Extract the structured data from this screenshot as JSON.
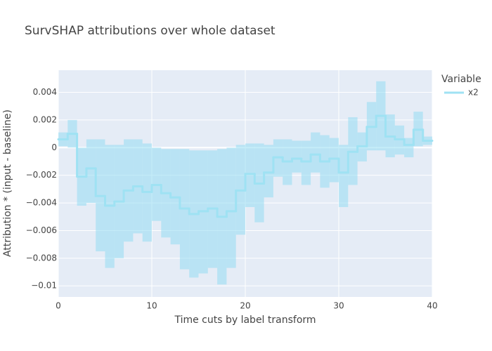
{
  "chart_data": {
    "type": "step",
    "title": "SurvSHAP attributions over whole dataset",
    "x_label": "Time cuts by label transform",
    "y_label": "Attribution * (input - baseline)",
    "legend_title": "Variable",
    "legend_position": "right",
    "grid": true,
    "xlim": [
      0,
      40
    ],
    "ylim": [
      -0.0108,
      0.0056
    ],
    "xticks": [
      0,
      10,
      20,
      30,
      40
    ],
    "yticks": [
      {
        "value": 0.004,
        "label": "0.004"
      },
      {
        "value": 0.002,
        "label": "0.002"
      },
      0,
      {
        "value": -0.002,
        "label": "−0.002"
      },
      {
        "value": -0.004,
        "label": "−0.004"
      },
      {
        "value": -0.006,
        "label": "−0.006"
      },
      {
        "value": -0.008,
        "label": "−0.008"
      },
      {
        "value": -0.01,
        "label": "−0.01"
      }
    ],
    "x": [
      0,
      1,
      2,
      3,
      4,
      5,
      6,
      7,
      8,
      9,
      10,
      11,
      12,
      13,
      14,
      15,
      16,
      17,
      18,
      19,
      20,
      21,
      22,
      23,
      24,
      25,
      26,
      27,
      28,
      29,
      30,
      31,
      32,
      33,
      34,
      35,
      36,
      37,
      38,
      39
    ],
    "series": [
      {
        "name": "x2",
        "color": "#9fe2f3",
        "band_color": "rgba(150,220,242,0.55)",
        "values": [
          0.0006,
          0.001,
          -0.0021,
          -0.0015,
          -0.0035,
          -0.0042,
          -0.0039,
          -0.0031,
          -0.0028,
          -0.0032,
          -0.0027,
          -0.0033,
          -0.0036,
          -0.0044,
          -0.0048,
          -0.0046,
          -0.0044,
          -0.005,
          -0.0046,
          -0.0031,
          -0.0019,
          -0.0026,
          -0.0018,
          -0.0007,
          -0.001,
          -0.0008,
          -0.001,
          -0.0005,
          -0.001,
          -0.0008,
          -0.0018,
          -0.0003,
          0.0001,
          0.0015,
          0.0023,
          0.0008,
          0.0006,
          0.0002,
          0.0013,
          0.0005
        ],
        "upper": [
          0.0011,
          0.002,
          0,
          0.0006,
          0.0006,
          0.0002,
          0.0002,
          0.0006,
          0.0006,
          0.0003,
          0,
          -0.0001,
          -0.0001,
          -0.0001,
          -0.0002,
          -0.0002,
          -0.0002,
          -0.0001,
          0,
          0.0002,
          0.0003,
          0.0003,
          0.0002,
          0.0006,
          0.0006,
          0.0005,
          0.0005,
          0.0011,
          0.0009,
          0.0007,
          0.0002,
          0.0022,
          0.0011,
          0.0033,
          0.0048,
          0.0024,
          0.0016,
          0.0007,
          0.0026,
          0.0008
        ],
        "lower": [
          0.0001,
          0,
          -0.0042,
          -0.004,
          -0.0075,
          -0.0087,
          -0.008,
          -0.0068,
          -0.0062,
          -0.0068,
          -0.0053,
          -0.0065,
          -0.007,
          -0.0088,
          -0.0094,
          -0.0091,
          -0.0087,
          -0.0099,
          -0.0087,
          -0.0063,
          -0.0043,
          -0.0054,
          -0.0036,
          -0.0021,
          -0.0027,
          -0.0018,
          -0.0027,
          -0.0018,
          -0.0029,
          -0.0025,
          -0.0043,
          -0.0027,
          -0.001,
          -0.0002,
          -0.0002,
          -0.0007,
          -0.0005,
          -0.0007,
          0.0001,
          0.0002
        ]
      }
    ]
  }
}
